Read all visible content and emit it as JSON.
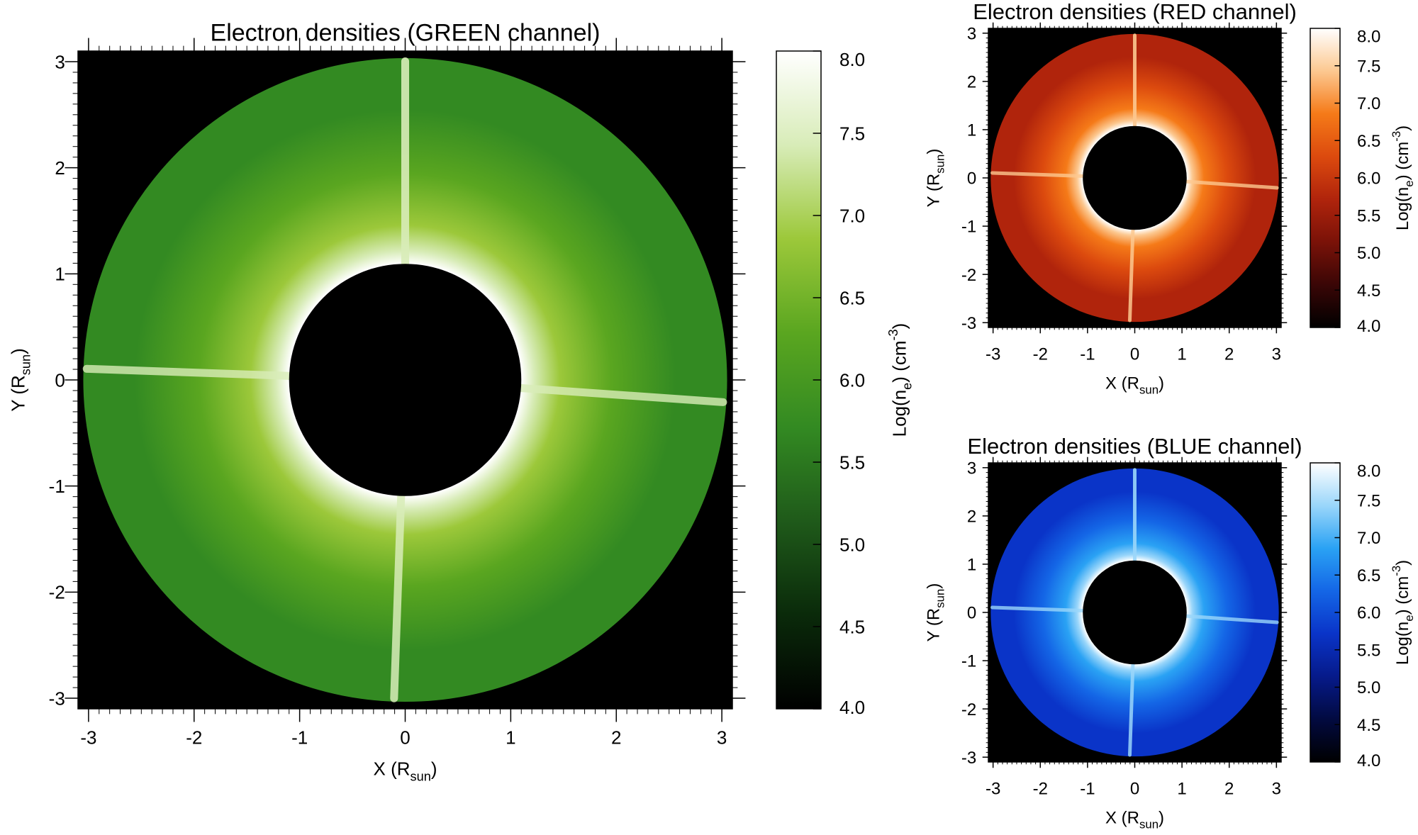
{
  "chart_data": [
    {
      "type": "heatmap",
      "id": "green",
      "title": "Electron densities (GREEN channel)",
      "xlabel": "X (R",
      "xlabel_sub": "sun",
      "ylabel": "Y (R",
      "ylabel_sub": "sun",
      "label_close": ")",
      "xlim": [
        -3.1,
        3.1
      ],
      "ylim": [
        -3.1,
        3.1
      ],
      "xticks": [
        -3,
        -2,
        -1,
        0,
        1,
        2,
        3
      ],
      "yticks": [
        -3,
        -2,
        -1,
        0,
        1,
        2,
        3
      ],
      "inner_radius": 1.1,
      "outer_radius": 3.05,
      "colorbar": {
        "label": "Log(n",
        "label_sub": "e",
        "label_unit": ") (cm",
        "label_sup": "-3",
        "range": [
          4.0,
          8.0
        ],
        "ticks": [
          "4.0",
          "4.5",
          "5.0",
          "5.5",
          "6.0",
          "6.5",
          "7.0",
          "7.5",
          "8.0"
        ],
        "colors": [
          "#000000",
          "#0a2a0a",
          "#1f5a1a",
          "#338a22",
          "#5aa620",
          "#9cc83a",
          "#d8ecb8",
          "#ffffff"
        ]
      }
    },
    {
      "type": "heatmap",
      "id": "red",
      "title": "Electron densities (RED channel)",
      "xlabel": "X (R",
      "xlabel_sub": "sun",
      "ylabel": "Y (R",
      "ylabel_sub": "sun",
      "label_close": ")",
      "xlim": [
        -3.1,
        3.1
      ],
      "ylim": [
        -3.1,
        3.1
      ],
      "xticks": [
        -3,
        -2,
        -1,
        0,
        1,
        2,
        3
      ],
      "yticks": [
        -3,
        -2,
        -1,
        0,
        1,
        2,
        3
      ],
      "inner_radius": 1.1,
      "outer_radius": 3.05,
      "colorbar": {
        "label": "Log(n",
        "label_sub": "e",
        "label_unit": ") (cm",
        "label_sup": "-3",
        "range": [
          4.0,
          8.0
        ],
        "ticks": [
          "4.0",
          "4.5",
          "5.0",
          "5.5",
          "6.0",
          "6.5",
          "7.0",
          "7.5",
          "8.0"
        ],
        "colors": [
          "#000000",
          "#3a0606",
          "#7a1208",
          "#b0240c",
          "#dc4a0e",
          "#f57a18",
          "#fcc890",
          "#ffffff"
        ]
      }
    },
    {
      "type": "heatmap",
      "id": "blue",
      "title": "Electron densities (BLUE channel)",
      "xlabel": "X (R",
      "xlabel_sub": "sun",
      "ylabel": "Y (R",
      "ylabel_sub": "sun",
      "label_close": ")",
      "xlim": [
        -3.1,
        3.1
      ],
      "ylim": [
        -3.1,
        3.1
      ],
      "xticks": [
        -3,
        -2,
        -1,
        0,
        1,
        2,
        3
      ],
      "yticks": [
        -3,
        -2,
        -1,
        0,
        1,
        2,
        3
      ],
      "inner_radius": 1.1,
      "outer_radius": 3.05,
      "colorbar": {
        "label": "Log(n",
        "label_sub": "e",
        "label_unit": ") (cm",
        "label_sup": "-3",
        "range": [
          4.0,
          8.0
        ],
        "ticks": [
          "4.0",
          "4.5",
          "5.0",
          "5.5",
          "6.0",
          "6.5",
          "7.0",
          "7.5",
          "8.0"
        ],
        "colors": [
          "#000000",
          "#020a40",
          "#061a8a",
          "#0a34c8",
          "#1466e6",
          "#2aa2f4",
          "#9ad6fa",
          "#ffffff"
        ]
      }
    }
  ]
}
